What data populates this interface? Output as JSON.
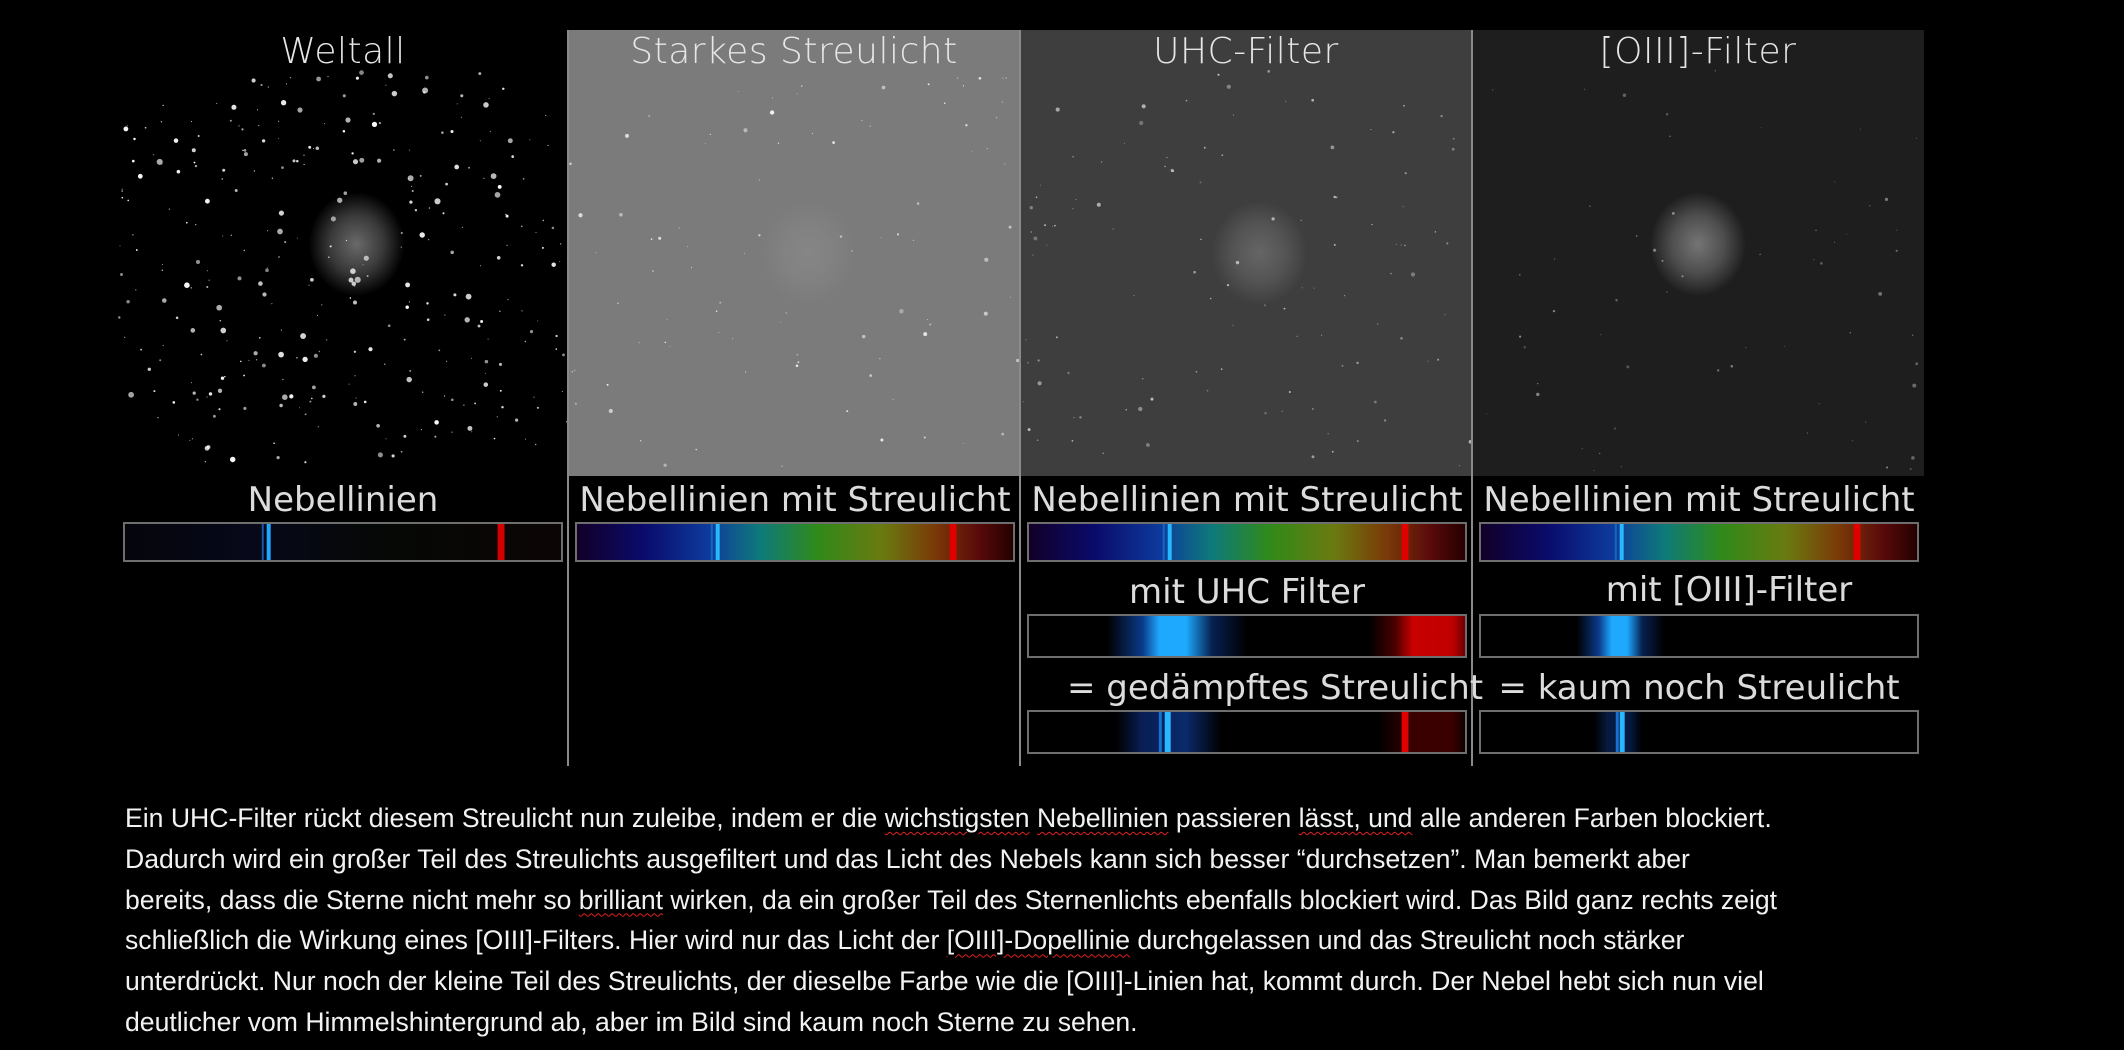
{
  "panels": [
    {
      "title": "Weltall",
      "label": "Nebellinien",
      "bg": "#000000"
    },
    {
      "title": "Starkes Streulicht",
      "label": "Nebellinien mit Streulicht",
      "bg": "#7b7b7b"
    },
    {
      "title": "UHC-Filter",
      "label": "Nebellinien mit Streulicht",
      "bg": "#3e3e3e"
    },
    {
      "title": "[OIII]-Filter",
      "label": "Nebellinien mit Streulicht",
      "bg": "#1e1e1e"
    }
  ],
  "uhc": {
    "filter_label": "mit UHC Filter",
    "result_label": "= gedämpftes Streulicht"
  },
  "oiii": {
    "filter_label": "mit [OIII]-Filter",
    "result_label": "= kaum noch Streulicht"
  },
  "colors": {
    "hbeta_oiii": "#1ea9ff",
    "halpha": "#d40000",
    "background": "#000000",
    "text": "#f2f2f2"
  },
  "paragraph": {
    "l1": [
      "Ein UHC-Filter rückt diesem Streulicht nun zuleibe, indem er die ",
      "wichstigsten",
      " ",
      "Nebellinien",
      " passieren ",
      "lässt, und",
      " alle anderen Farben blockiert."
    ],
    "l2": "Dadurch wird ein großer Teil  des Streulichts ausgefiltert und das Licht des Nebels kann sich besser “durchsetzen”. Man bemerkt aber",
    "l3": [
      "bereits, dass die Sterne nicht mehr so ",
      "brilliant",
      " wirken, da ein großer Teil  des Sternenlichts ebenfalls blockiert wird. Das Bild ganz rechts zeigt"
    ],
    "l4": [
      "schließlich die Wirkung eines [OIII]-Filters. Hier wird nur das Licht der ",
      "[OIII]-Dopellinie",
      " durchgelassen und das Streulicht noch stärker"
    ],
    "l5": "unterdrückt. Nur noch der kleine Teil  des Streulichts, der dieselbe Farbe wie die [OIII]-Linien hat, kommt durch. Der Nebel hebt sich nun viel",
    "l6": "deutlicher vom Himmelshintergrund ab, aber im Bild sind kaum noch Sterne zu sehen."
  }
}
